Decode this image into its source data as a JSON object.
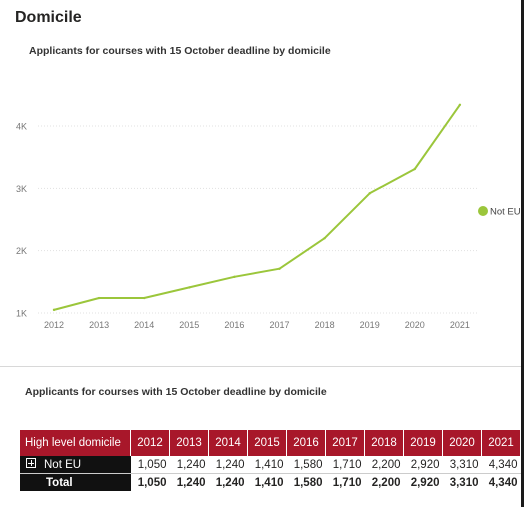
{
  "page": {
    "heading": "Domicile"
  },
  "chart_data": {
    "type": "line",
    "title": "Applicants for courses with 15 October deadline by domicile",
    "xlabel": "",
    "ylabel": "",
    "categories": [
      "2012",
      "2013",
      "2014",
      "2015",
      "2016",
      "2017",
      "2018",
      "2019",
      "2020",
      "2021"
    ],
    "series": [
      {
        "name": "Not EU",
        "color": "#9bc63b",
        "values": [
          1050,
          1240,
          1240,
          1410,
          1580,
          1710,
          2200,
          2920,
          3310,
          4340
        ]
      }
    ],
    "yticks": [
      1000,
      2000,
      3000,
      4000
    ],
    "ytick_labels": [
      "1K",
      "2K",
      "3K",
      "4K"
    ],
    "ylim": [
      1000,
      4500
    ],
    "grid": true,
    "legend_position": "right"
  },
  "table": {
    "title": "Applicants for courses with 15 October deadline  by domicile",
    "header_label": "High level domicile",
    "columns": [
      "2012",
      "2013",
      "2014",
      "2015",
      "2016",
      "2017",
      "2018",
      "2019",
      "2020",
      "2021"
    ],
    "rows": [
      {
        "label": "Not EU",
        "values": [
          "1,050",
          "1,240",
          "1,240",
          "1,410",
          "1,580",
          "1,710",
          "2,200",
          "2,920",
          "3,310",
          "4,340"
        ]
      }
    ],
    "total": {
      "label": "Total",
      "values": [
        "1,050",
        "1,240",
        "1,240",
        "1,410",
        "1,580",
        "1,710",
        "2,200",
        "2,920",
        "3,310",
        "4,340"
      ]
    },
    "header_color": "#a8172a",
    "expand_icon": "expand-plus-icon"
  }
}
